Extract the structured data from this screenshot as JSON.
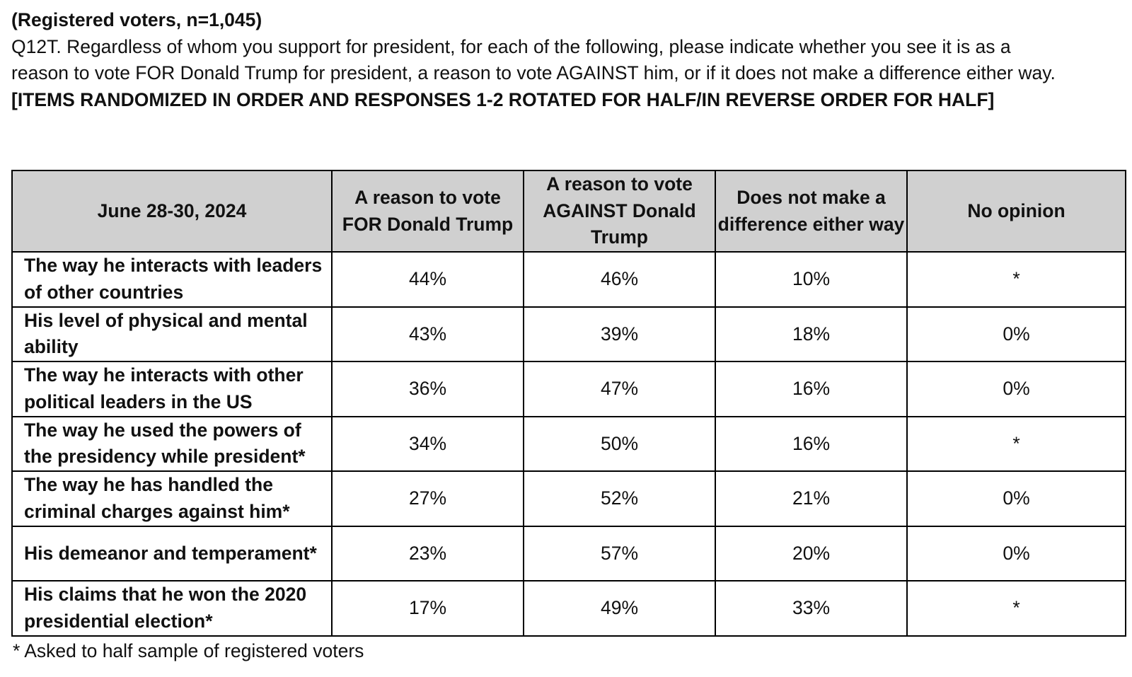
{
  "sample_note": "(Registered voters, n=1,045)",
  "question": {
    "text": "Q12T. Regardless of whom you support for president, for each of the following, please indicate whether you see it is as a reason to vote FOR Donald Trump for president, a reason to vote AGAINST him, or if it does not make a difference either way.",
    "instruction": "[ITEMS RANDOMIZED IN ORDER AND RESPONSES 1-2 ROTATED FOR HALF/IN REVERSE ORDER FOR HALF]"
  },
  "table": {
    "headers": [
      "June 28-30, 2024",
      "A reason to vote FOR Donald Trump",
      "A reason to vote AGAINST Donald Trump",
      "Does not make a difference either way",
      "No opinion"
    ],
    "rows": [
      {
        "item": "The way he interacts with leaders of other countries",
        "values": [
          "44%",
          "46%",
          "10%",
          "*"
        ]
      },
      {
        "item": "His level of physical and mental ability",
        "values": [
          "43%",
          "39%",
          "18%",
          "0%"
        ]
      },
      {
        "item": "The way he interacts with other political leaders in the US",
        "values": [
          "36%",
          "47%",
          "16%",
          "0%"
        ]
      },
      {
        "item": "The way he used the powers of the presidency while president*",
        "values": [
          "34%",
          "50%",
          "16%",
          "*"
        ]
      },
      {
        "item": "The way he has handled the criminal charges against him*",
        "values": [
          "27%",
          "52%",
          "21%",
          "0%"
        ]
      },
      {
        "item": "His demeanor and temperament*",
        "values": [
          "23%",
          "57%",
          "20%",
          "0%"
        ]
      },
      {
        "item": "His claims that he won the 2020 presidential election*",
        "values": [
          "17%",
          "49%",
          "33%",
          "*"
        ]
      }
    ]
  },
  "footnote": "* Asked to half sample of registered voters"
}
